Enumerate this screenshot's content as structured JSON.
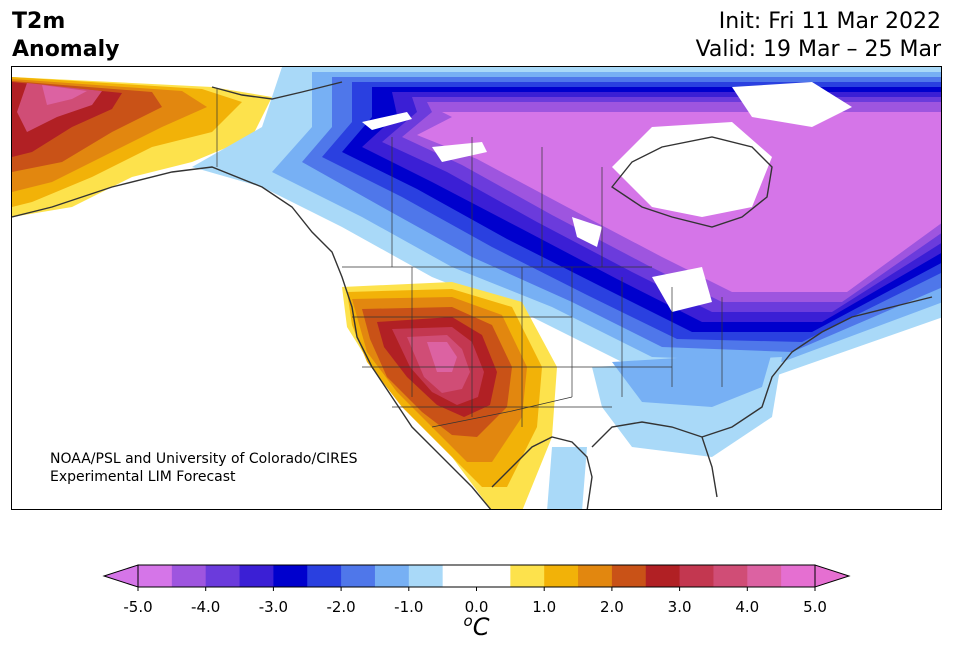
{
  "header": {
    "title_line1": "T2m",
    "title_line2": "Anomaly",
    "init": "Init: Fri 11 Mar 2022",
    "valid": "Valid: 19 Mar – 25 Mar"
  },
  "credit": {
    "line1": "NOAA/PSL and University of Colorado/CIRES",
    "line2": "Experimental LIM Forecast"
  },
  "colorbar": {
    "colors": [
      "#d575e8",
      "#9e55df",
      "#6b3bdc",
      "#3b1fd5",
      "#0000cd",
      "#2a40e0",
      "#4f77ea",
      "#77b0f4",
      "#a9d9f8",
      "#ffffff",
      "#ffffff",
      "#fde24c",
      "#f2b208",
      "#e2870f",
      "#c95217",
      "#b12024",
      "#c33750",
      "#d04d76",
      "#dc62a2",
      "#e56fd1"
    ],
    "min_color": "#d575e8",
    "max_color": "#e56fd1",
    "tick_labels": [
      "-5.0",
      "-4.0",
      "-3.0",
      "-2.0",
      "-1.0",
      "0.0",
      "1.0",
      "2.0",
      "3.0",
      "4.0",
      "5.0"
    ],
    "units": "oC"
  },
  "map": {
    "region": "North America",
    "variable": "2 m temperature anomaly",
    "patterns": [
      {
        "area": "Canada, Northern Plains, Great Lakes, Northeast US",
        "sign": "cold",
        "peak": "-5.0"
      },
      {
        "area": "Southwest US, California, Nevada, Arizona",
        "sign": "warm",
        "peak": "4.0"
      },
      {
        "area": "Western Alaska",
        "sign": "warm",
        "peak": "5.0"
      },
      {
        "area": "Southeast US, Gulf Coast",
        "sign": "slightly cold",
        "peak": "-1.0"
      }
    ]
  }
}
